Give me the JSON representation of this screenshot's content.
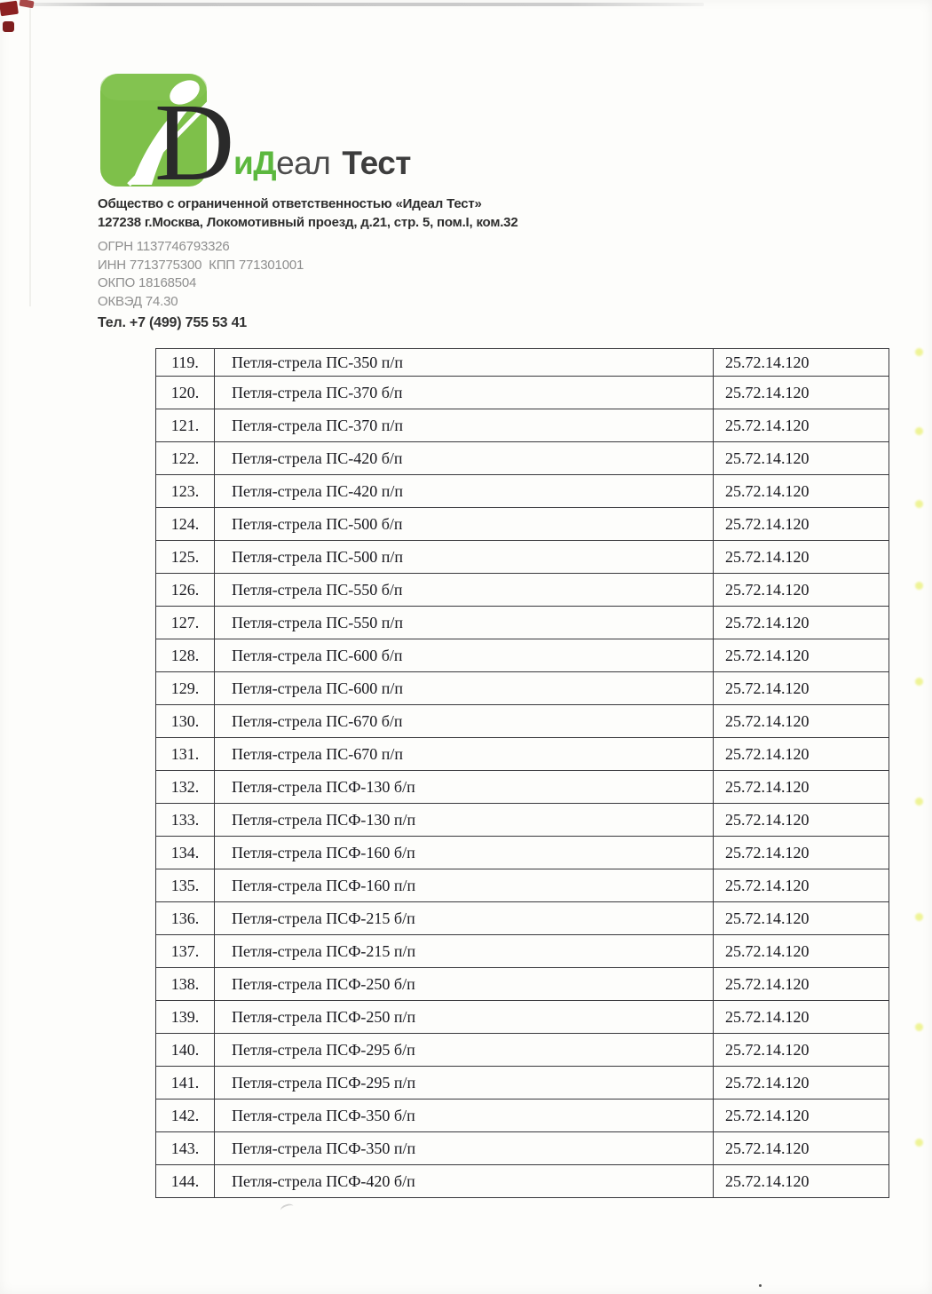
{
  "company": {
    "logo": {
      "letter": "D",
      "wordmark_green": "иД",
      "wordmark_mid": "еал",
      "wordmark_bold": "Тест",
      "brand_green": "#7ec04a",
      "brand_dark": "#2a2a2a"
    },
    "name_line": "Общество с ограниченной ответственностью «Идеал Тест»",
    "address_line": "127238 г.Москва, Локомотивный проезд, д.21, стр. 5, пом.I, ком.32",
    "registry_lines": [
      "ОГРН 1137746793326",
      "ИНН 7713775300  КПП 771301001",
      "ОКПО 18168504",
      "ОКВЭД 74.30"
    ],
    "phone_line": "Тел. +7 (499) 755 53 41"
  },
  "table": {
    "rows": [
      {
        "num": "119.",
        "name": "Петля-стрела ПС-350 п/п",
        "code": "25.72.14.120"
      },
      {
        "num": "120.",
        "name": "Петля-стрела ПС-370 б/п",
        "code": "25.72.14.120"
      },
      {
        "num": "121.",
        "name": "Петля-стрела ПС-370 п/п",
        "code": "25.72.14.120"
      },
      {
        "num": "122.",
        "name": "Петля-стрела ПС-420 б/п",
        "code": "25.72.14.120"
      },
      {
        "num": "123.",
        "name": "Петля-стрела ПС-420 п/п",
        "code": "25.72.14.120"
      },
      {
        "num": "124.",
        "name": "Петля-стрела ПС-500 б/п",
        "code": "25.72.14.120"
      },
      {
        "num": "125.",
        "name": "Петля-стрела ПС-500 п/п",
        "code": "25.72.14.120"
      },
      {
        "num": "126.",
        "name": "Петля-стрела ПС-550 б/п",
        "code": "25.72.14.120"
      },
      {
        "num": "127.",
        "name": "Петля-стрела ПС-550 п/п",
        "code": "25.72.14.120"
      },
      {
        "num": "128.",
        "name": "Петля-стрела ПС-600 б/п",
        "code": "25.72.14.120"
      },
      {
        "num": "129.",
        "name": "Петля-стрела ПС-600 п/п",
        "code": "25.72.14.120"
      },
      {
        "num": "130.",
        "name": "Петля-стрела ПС-670 б/п",
        "code": "25.72.14.120"
      },
      {
        "num": "131.",
        "name": "Петля-стрела ПС-670 п/п",
        "code": "25.72.14.120"
      },
      {
        "num": "132.",
        "name": "Петля-стрела ПСФ-130 б/п",
        "code": "25.72.14.120"
      },
      {
        "num": "133.",
        "name": "Петля-стрела ПСФ-130 п/п",
        "code": "25.72.14.120"
      },
      {
        "num": "134.",
        "name": "Петля-стрела ПСФ-160 б/п",
        "code": "25.72.14.120"
      },
      {
        "num": "135.",
        "name": "Петля-стрела ПСФ-160 п/п",
        "code": "25.72.14.120"
      },
      {
        "num": "136.",
        "name": "Петля-стрела ПСФ-215 б/п",
        "code": "25.72.14.120"
      },
      {
        "num": "137.",
        "name": "Петля-стрела ПСФ-215 п/п",
        "code": "25.72.14.120"
      },
      {
        "num": "138.",
        "name": "Петля-стрела ПСФ-250 б/п",
        "code": "25.72.14.120"
      },
      {
        "num": "139.",
        "name": "Петля-стрела ПСФ-250 п/п",
        "code": "25.72.14.120"
      },
      {
        "num": "140.",
        "name": "Петля-стрела ПСФ-295 б/п",
        "code": "25.72.14.120"
      },
      {
        "num": "141.",
        "name": "Петля-стрела ПСФ-295 п/п",
        "code": "25.72.14.120"
      },
      {
        "num": "142.",
        "name": "Петля-стрела ПСФ-350 б/п",
        "code": "25.72.14.120"
      },
      {
        "num": "143.",
        "name": "Петля-стрела ПСФ-350 п/п",
        "code": "25.72.14.120"
      },
      {
        "num": "144.",
        "name": "Петля-стрела ПСФ-420 б/п",
        "code": "25.72.14.120"
      }
    ]
  }
}
